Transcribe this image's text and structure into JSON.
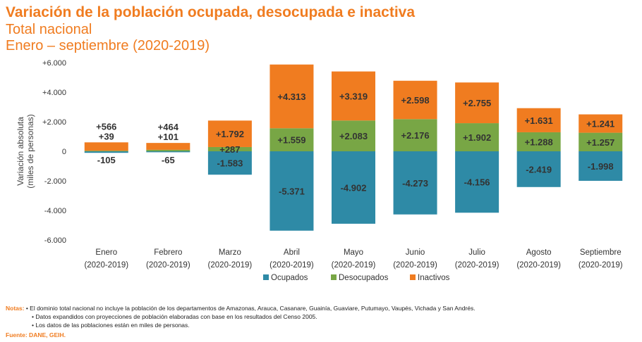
{
  "title": "Variación de la población ocupada, desocupada e inactiva",
  "subtitle1": "Total nacional",
  "subtitle2": "Enero – septiembre (2020-2019)",
  "notes_label": "Notas:",
  "notes": [
    "• El dominio total nacional no incluye la población de los departamentos de Amazonas, Arauca, Casanare, Guainía, Guaviare, Putumayo, Vaupés, Vichada y San Andrés.",
    "• Datos expandidos con proyecciones de población elaboradas con base en los resultados del Censo 2005.",
    "• Los datos de las poblaciones están en miles de personas."
  ],
  "source": "Fuente: DANE, GEIH.",
  "colors": {
    "title": "#F07C20",
    "ocupados": "#2E8AA6",
    "desocupados": "#78A645",
    "inactivos": "#F07C20"
  },
  "chart_data": {
    "type": "bar",
    "stacked": true,
    "ylabel": "Variación absoluta\n(miles de personas)",
    "ylim": [
      -6000,
      6000
    ],
    "yticks": [
      -6000,
      -4000,
      -2000,
      0,
      2000,
      4000,
      6000
    ],
    "ytick_labels": [
      "-6.000",
      "-4.000",
      "-2.000",
      "0",
      "+2.000",
      "+4.000",
      "+6.000"
    ],
    "legend_position": "bottom",
    "grid": false,
    "categories": [
      [
        "Enero",
        "(2020-2019)"
      ],
      [
        "Febrero",
        "(2020-2019)"
      ],
      [
        "Marzo",
        "(2020-2019)"
      ],
      [
        "Abril",
        "(2020-2019)"
      ],
      [
        "Mayo",
        "(2020-2019)"
      ],
      [
        "Junio",
        "(2020-2019)"
      ],
      [
        "Julio",
        "(2020-2019)"
      ],
      [
        "Agosto",
        "(2020-2019)"
      ],
      [
        "Septiembre",
        "(2020-2019)"
      ]
    ],
    "series": [
      {
        "name": "Ocupados",
        "values": [
          -105,
          -65,
          -1583,
          -5371,
          -4902,
          -4273,
          -4156,
          -2419,
          -1998
        ],
        "labels": [
          "-105",
          "-65",
          "-1.583",
          "-5.371",
          "-4.902",
          "-4.273",
          "-4.156",
          "-2.419",
          "-1.998"
        ]
      },
      {
        "name": "Desocupados",
        "values": [
          39,
          101,
          287,
          1559,
          2083,
          2176,
          1902,
          1288,
          1257
        ],
        "labels": [
          "+39",
          "+101",
          "+287",
          "+1.559",
          "+2.083",
          "+2.176",
          "+1.902",
          "+1.288",
          "+1.257"
        ]
      },
      {
        "name": "Inactivos",
        "values": [
          566,
          464,
          1792,
          4313,
          3319,
          2598,
          2755,
          1631,
          1241
        ],
        "labels": [
          "+566",
          "+464",
          "+1.792",
          "+4.313",
          "+3.319",
          "+2.598",
          "+2.755",
          "+1.631",
          "+1.241"
        ]
      }
    ]
  }
}
